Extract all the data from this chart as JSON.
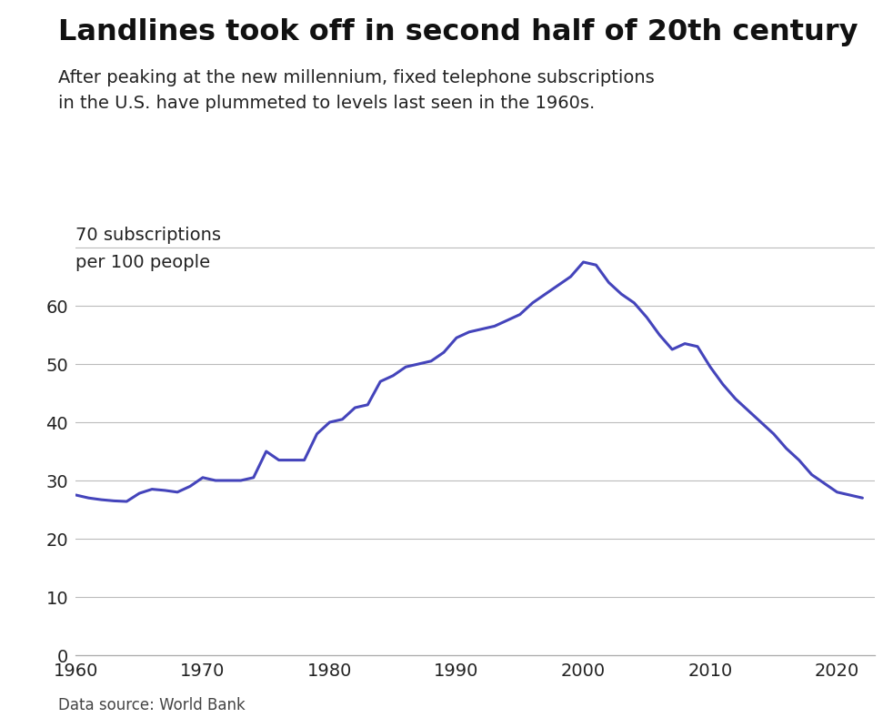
{
  "title": "Landlines took off in second half of 20th century",
  "subtitle": "After peaking at the new millennium, fixed telephone subscriptions\nin the U.S. have plummeted to levels last seen in the 1960s.",
  "ylabel_top": "70 subscriptions",
  "ylabel_bottom": "per 100 people",
  "source": "Data source: World Bank",
  "line_color": "#4444bb",
  "background_color": "#ffffff",
  "years": [
    1960,
    1961,
    1962,
    1963,
    1964,
    1965,
    1966,
    1967,
    1968,
    1969,
    1970,
    1971,
    1972,
    1973,
    1974,
    1975,
    1976,
    1977,
    1978,
    1979,
    1980,
    1981,
    1982,
    1983,
    1984,
    1985,
    1986,
    1987,
    1988,
    1989,
    1990,
    1991,
    1992,
    1993,
    1994,
    1995,
    1996,
    1997,
    1998,
    1999,
    2000,
    2001,
    2002,
    2003,
    2004,
    2005,
    2006,
    2007,
    2008,
    2009,
    2010,
    2011,
    2012,
    2013,
    2014,
    2015,
    2016,
    2017,
    2018,
    2019,
    2020,
    2021,
    2022
  ],
  "values": [
    27.5,
    27.0,
    26.7,
    26.5,
    26.4,
    27.8,
    28.5,
    28.3,
    28.0,
    29.0,
    30.5,
    30.0,
    30.0,
    30.0,
    30.5,
    35.0,
    33.5,
    33.5,
    33.5,
    38.0,
    40.0,
    40.5,
    42.5,
    43.0,
    47.0,
    48.0,
    49.5,
    50.0,
    50.5,
    52.0,
    54.5,
    55.5,
    56.0,
    56.5,
    57.5,
    58.5,
    60.5,
    62.0,
    63.5,
    65.0,
    67.5,
    67.0,
    64.0,
    62.0,
    60.5,
    58.0,
    55.0,
    52.5,
    53.5,
    53.0,
    49.5,
    46.5,
    44.0,
    42.0,
    40.0,
    38.0,
    35.5,
    33.5,
    31.0,
    29.5,
    28.0,
    27.5,
    27.0
  ],
  "xlim": [
    1960,
    2023
  ],
  "ylim": [
    0,
    75
  ],
  "yticks": [
    0,
    10,
    20,
    30,
    40,
    50,
    60
  ],
  "xticks": [
    1960,
    1970,
    1980,
    1990,
    2000,
    2010,
    2020
  ],
  "title_fontsize": 23,
  "subtitle_fontsize": 14,
  "tick_fontsize": 14,
  "ylabel_fontsize": 14,
  "source_fontsize": 12,
  "line_width": 2.2
}
